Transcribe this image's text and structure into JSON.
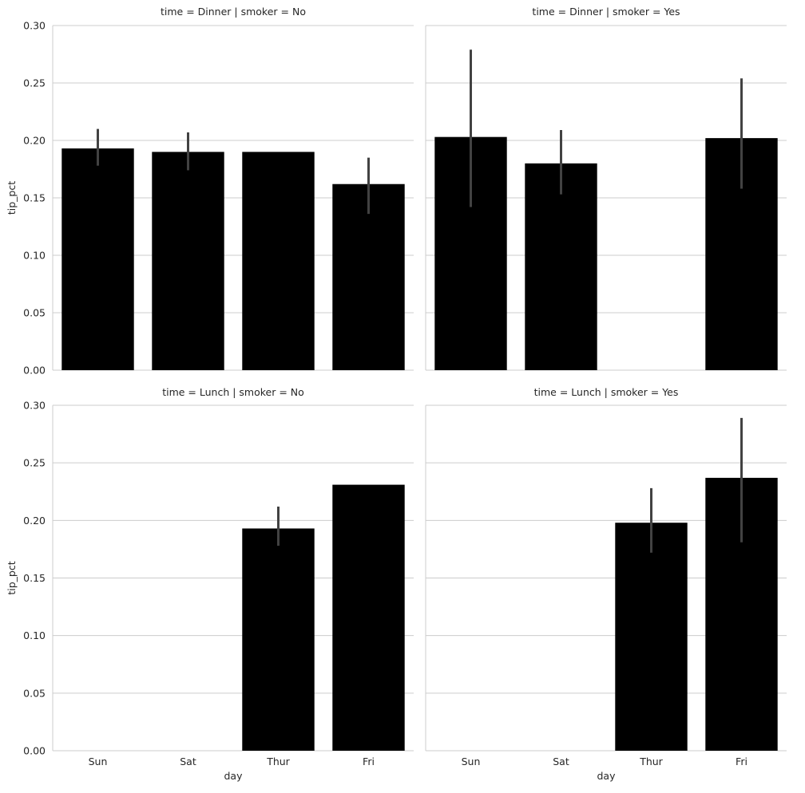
{
  "chart_data": {
    "type": "bar",
    "facet_rows": "time",
    "facet_cols": "smoker",
    "xlabel": "day",
    "ylabel": "tip_pct",
    "categories": [
      "Sun",
      "Sat",
      "Thur",
      "Fri"
    ],
    "ylim": [
      0,
      0.3
    ],
    "yticks": [
      "0.00",
      "0.05",
      "0.10",
      "0.15",
      "0.20",
      "0.25",
      "0.30"
    ],
    "grid": true,
    "bar_color": "#000000",
    "errorbar_color": "#424242",
    "panels": [
      {
        "title": "time = Dinner | smoker = No",
        "values": [
          0.193,
          0.19,
          0.19,
          0.162
        ],
        "ci_low": [
          0.178,
          0.174,
          null,
          0.136
        ],
        "ci_high": [
          0.21,
          0.207,
          null,
          0.185
        ]
      },
      {
        "title": "time = Dinner | smoker = Yes",
        "values": [
          0.203,
          0.18,
          null,
          0.202
        ],
        "ci_low": [
          0.142,
          0.153,
          null,
          0.158
        ],
        "ci_high": [
          0.279,
          0.209,
          null,
          0.254
        ]
      },
      {
        "title": "time = Lunch | smoker = No",
        "values": [
          null,
          null,
          0.193,
          0.231
        ],
        "ci_low": [
          null,
          null,
          0.178,
          null
        ],
        "ci_high": [
          null,
          null,
          0.212,
          null
        ]
      },
      {
        "title": "time = Lunch | smoker = Yes",
        "values": [
          null,
          null,
          0.198,
          0.237
        ],
        "ci_low": [
          null,
          null,
          0.172,
          0.181
        ],
        "ci_high": [
          null,
          null,
          0.228,
          0.289
        ]
      }
    ]
  }
}
